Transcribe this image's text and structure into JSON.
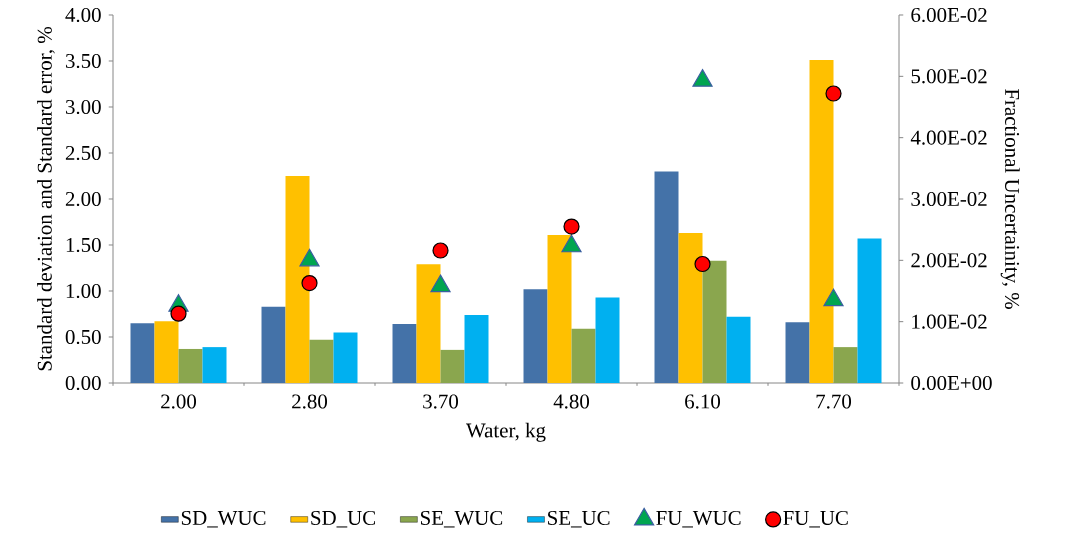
{
  "chart_data": {
    "type": "bar",
    "xlabel": "Water, kg",
    "ylabel": "Standard deviation and Standard error, %",
    "y2label": "Fractional Uncertainity, %",
    "categories": [
      "2.00",
      "2.80",
      "3.70",
      "4.80",
      "6.10",
      "7.70"
    ],
    "ylim": [
      0,
      4
    ],
    "yticks": [
      {
        "value": 0,
        "label": "0.00"
      },
      {
        "value": 0.5,
        "label": "0.50"
      },
      {
        "value": 1,
        "label": "1.00"
      },
      {
        "value": 1.5,
        "label": "1.50"
      },
      {
        "value": 2,
        "label": "2.00"
      },
      {
        "value": 2.5,
        "label": "2.50"
      },
      {
        "value": 3,
        "label": "3.00"
      },
      {
        "value": 3.5,
        "label": "3.50"
      },
      {
        "value": 4,
        "label": "4.00"
      }
    ],
    "y2lim": [
      0,
      0.06
    ],
    "y2ticks": [
      {
        "value": 0,
        "label": "0.00E+00"
      },
      {
        "value": 0.01,
        "label": "1.00E-02"
      },
      {
        "value": 0.02,
        "label": "2.00E-02"
      },
      {
        "value": 0.03,
        "label": "3.00E-02"
      },
      {
        "value": 0.04,
        "label": "4.00E-02"
      },
      {
        "value": 0.05,
        "label": "5.00E-02"
      },
      {
        "value": 0.06,
        "label": "6.00E-02"
      }
    ],
    "legend": "bottom",
    "series": [
      {
        "name": "SD_WUC",
        "color": "#4472a8",
        "values": [
          0.65,
          0.83,
          0.64,
          1.02,
          2.3,
          0.66
        ]
      },
      {
        "name": "SD_UC",
        "color": "#ffc000",
        "values": [
          0.67,
          2.25,
          1.29,
          1.61,
          1.63,
          3.51
        ]
      },
      {
        "name": "SE_WUC",
        "color": "#8aa64e",
        "values": [
          0.37,
          0.47,
          0.36,
          0.59,
          1.33,
          0.39
        ]
      },
      {
        "name": "SE_UC",
        "color": "#00b0f0",
        "values": [
          0.39,
          0.55,
          0.74,
          0.93,
          0.72,
          1.57
        ]
      },
      {
        "name": "FU_WUC",
        "type": "scatter",
        "axis": "y2",
        "marker": "triangle",
        "color": "#00a550",
        "values": [
          0.0126,
          0.02,
          0.0158,
          0.0223,
          0.0493,
          0.0135
        ]
      },
      {
        "name": "FU_UC",
        "type": "scatter",
        "axis": "y2",
        "marker": "circle",
        "color": "#ff0000",
        "values": [
          0.0113,
          0.0163,
          0.0216,
          0.0255,
          0.0194,
          0.0472
        ]
      }
    ]
  }
}
